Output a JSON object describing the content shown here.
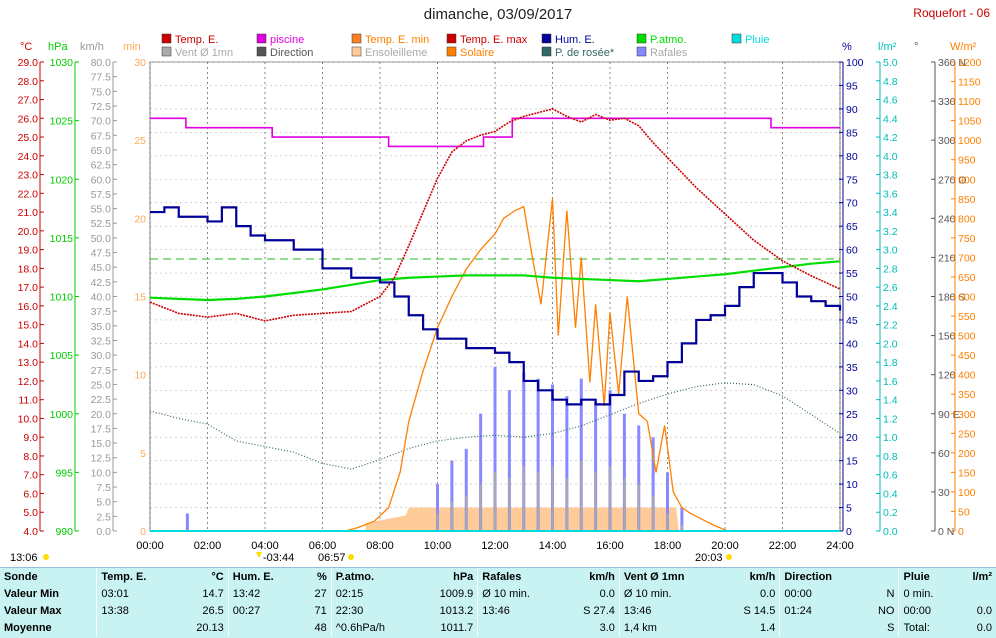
{
  "title": "dimanche, 03/09/2017",
  "station": "Roquefort - 06",
  "legend": [
    {
      "label": "Temp. E.",
      "color": "#cc0000"
    },
    {
      "label": "piscine",
      "color": "#e000e0"
    },
    {
      "label": "Temp. E. min",
      "color": "#ff7f27"
    },
    {
      "label": "Temp. E. max",
      "color": "#cc0000"
    },
    {
      "label": "Hum. E.",
      "color": "#000099"
    },
    {
      "label": "P.atmo.",
      "color": "#00dd00"
    },
    {
      "label": "Pluie",
      "color": "#00dddd"
    },
    {
      "label": "Vent Ø 1mn",
      "color": "#aaaaaa"
    },
    {
      "label": "Direction",
      "color": "#555555"
    },
    {
      "label": "Ensoleilleme",
      "color": "#ffcc99"
    },
    {
      "label": "Solaire",
      "color": "#ff7f00"
    },
    {
      "label": "P. de rosée*",
      "color": "#336666"
    },
    {
      "label": "Rafales",
      "color": "#8888ff"
    }
  ],
  "axis_units": {
    "temp": "°C",
    "press": "hPa",
    "wind": "km/h",
    "min": "min",
    "hum": "%",
    "rain": "l/m²",
    "dir": "°",
    "solar": "W/m²"
  },
  "sun": {
    "rise_label": "06:57",
    "set_label": "20:03",
    "day_start": "13:06",
    "night_label": "-03:44"
  },
  "chart_data": {
    "type": "line",
    "x_ticks": [
      "00:00",
      "02:00",
      "04:00",
      "06:00",
      "08:00",
      "10:00",
      "12:00",
      "14:00",
      "16:00",
      "18:00",
      "20:00",
      "22:00",
      "24:00"
    ],
    "axes": {
      "temp": {
        "ylim": [
          4,
          29
        ],
        "step": 1
      },
      "pressure": {
        "ylim": [
          990,
          1030
        ],
        "step": 5
      },
      "wind": {
        "ylim": [
          0,
          80
        ],
        "step": 2.5
      },
      "minutes": {
        "ylim": [
          0,
          30
        ],
        "step": 5
      },
      "humidity": {
        "ylim": [
          0,
          100
        ],
        "step": 5
      },
      "rain": {
        "ylim": [
          0,
          5
        ],
        "step": 0.2
      },
      "direction": {
        "ylim": [
          0,
          360
        ],
        "step": 30,
        "labels": {
          "360": "N",
          "270": "O",
          "180": "S",
          "90": "E",
          "0": "N"
        }
      },
      "solar": {
        "ylim": [
          0,
          1200
        ],
        "step": 50
      }
    },
    "series": [
      {
        "name": "Temp. E.",
        "axis": "temp",
        "color": "#cc0000",
        "x": [
          0,
          1,
          2,
          3,
          4,
          5,
          6,
          7,
          8,
          8.5,
          9,
          9.5,
          10,
          10.5,
          11,
          11.5,
          12,
          12.5,
          13,
          13.5,
          14,
          14.5,
          15,
          15.5,
          16,
          16.5,
          17,
          17.5,
          18,
          19,
          20,
          21,
          22,
          23,
          24
        ],
        "y": [
          16.2,
          15.6,
          15.4,
          15.6,
          15.2,
          15.5,
          15.6,
          15.7,
          16.5,
          17.5,
          19.2,
          21,
          22.8,
          24.2,
          24.8,
          25.1,
          25.3,
          25.8,
          26.1,
          26.3,
          26.5,
          26.1,
          25.8,
          26.2,
          25.9,
          26.0,
          25.6,
          24.7,
          23.9,
          22.3,
          20.9,
          19.5,
          18.4,
          17.6,
          16.9
        ]
      },
      {
        "name": "piscine",
        "axis": "temp",
        "color": "#e000e0",
        "x": [
          0,
          1.2,
          1.25,
          4.2,
          4.25,
          8.2,
          8.3,
          11.5,
          11.6,
          12.5,
          12.6,
          21.5,
          21.6,
          24
        ],
        "y": [
          26.0,
          26.0,
          25.5,
          25.5,
          25.0,
          25.0,
          24.5,
          24.5,
          25.0,
          25.0,
          26.0,
          26.0,
          25.5,
          25.5
        ]
      },
      {
        "name": "Hum. E.",
        "axis": "humidity",
        "color": "#000099",
        "x": [
          0,
          0.5,
          1,
          2,
          2.5,
          3,
          3.5,
          4,
          5,
          6,
          7,
          8,
          8.5,
          9,
          9.5,
          10,
          11,
          12,
          12.5,
          13,
          13.5,
          14,
          14.5,
          15,
          15.5,
          16,
          16.5,
          17,
          17.5,
          18,
          18.5,
          19,
          19.5,
          20,
          20.5,
          21,
          21.5,
          22,
          22.5,
          23,
          23.5,
          24
        ],
        "y": [
          68,
          69,
          67,
          66,
          69,
          65,
          63,
          62,
          60,
          56,
          54,
          53,
          50,
          46,
          43,
          41,
          39,
          38,
          36,
          32,
          30,
          28,
          27,
          28,
          27,
          29,
          34,
          32,
          33,
          36,
          40,
          45,
          46,
          48,
          52,
          55,
          55,
          53,
          50,
          49,
          48,
          47
        ]
      },
      {
        "name": "P.atmo.",
        "axis": "pressure",
        "color": "#00dd00",
        "x": [
          0,
          1,
          2,
          3,
          4,
          5,
          6,
          7,
          8,
          9,
          10,
          11,
          12,
          13,
          14,
          15,
          16,
          17,
          18,
          19,
          20,
          21,
          22,
          23,
          24
        ],
        "y": [
          1009.9,
          1009.8,
          1009.7,
          1009.8,
          1010.0,
          1010.3,
          1010.6,
          1011.0,
          1011.4,
          1011.6,
          1011.7,
          1011.8,
          1011.8,
          1011.8,
          1011.6,
          1011.5,
          1011.4,
          1011.3,
          1011.5,
          1011.7,
          1011.9,
          1012.2,
          1012.5,
          1012.8,
          1013.0
        ]
      },
      {
        "name": "Solaire",
        "axis": "solar",
        "color": "#ff7f00",
        "x": [
          6.8,
          7.2,
          7.8,
          8.3,
          8.7,
          9,
          9.5,
          10,
          10.5,
          11,
          11.5,
          12,
          12.3,
          12.7,
          13,
          13.3,
          13.6,
          14,
          14.2,
          14.5,
          14.8,
          15,
          15.3,
          15.5,
          15.8,
          16,
          16.3,
          16.6,
          17,
          17.3,
          17.6,
          17.9,
          18.2,
          18.5,
          18.8,
          19.2,
          19.6,
          20,
          20.1
        ],
        "y": [
          0,
          8,
          25,
          60,
          150,
          280,
          410,
          520,
          600,
          670,
          720,
          760,
          800,
          820,
          830,
          700,
          580,
          850,
          500,
          820,
          520,
          700,
          380,
          580,
          320,
          560,
          350,
          600,
          300,
          280,
          150,
          270,
          100,
          60,
          45,
          30,
          15,
          3,
          0
        ]
      },
      {
        "name": "P. de rosée*",
        "axis": "temp",
        "color": "#336666",
        "x": [
          0,
          1,
          2,
          3,
          4,
          5,
          6,
          7,
          8,
          9,
          10,
          11,
          12,
          13,
          14,
          15,
          16,
          17,
          18,
          19,
          20,
          21,
          22,
          23,
          24
        ],
        "y": [
          10.4,
          10.0,
          9.7,
          8.8,
          8.5,
          8.2,
          7.6,
          7.3,
          7.8,
          8.4,
          8.8,
          9.0,
          9.1,
          9.0,
          9.2,
          9.6,
          10.2,
          10.8,
          11.3,
          11.7,
          11.9,
          11.8,
          11.2,
          10.2,
          9.2
        ]
      },
      {
        "name": "Rafales",
        "axis": "wind",
        "color": "#8888ff",
        "x": [
          1.3,
          10,
          10.5,
          11,
          11.5,
          12,
          12.5,
          13,
          13.5,
          14,
          14.5,
          15,
          15.5,
          16,
          16.5,
          17,
          17.5,
          18,
          18.5
        ],
        "y": [
          3,
          8,
          12,
          14,
          20,
          28,
          24,
          27,
          26,
          25,
          23,
          26,
          22,
          24,
          20,
          18,
          16,
          10,
          4
        ]
      },
      {
        "name": "Vent Ø 1mn",
        "axis": "wind",
        "color": "#aaaaaa",
        "x": [
          10,
          10.5,
          11,
          11.5,
          12,
          12.5,
          13,
          13.5,
          14,
          14.5,
          15,
          15.5,
          16,
          16.5,
          17,
          17.5,
          18,
          18.5
        ],
        "y": [
          3,
          5,
          6,
          8,
          10,
          9,
          11,
          10,
          11,
          9,
          12,
          10,
          11,
          9,
          8,
          6,
          3,
          1
        ]
      },
      {
        "name": "Ensoleilleme",
        "axis": "minutes",
        "color": "#ffcc99",
        "x": [
          7.5,
          8.9,
          9,
          18.3,
          18.4
        ],
        "y": [
          0.5,
          1,
          1.5,
          1.5,
          0
        ]
      }
    ]
  },
  "stats": {
    "headers": [
      {
        "label": "Sonde",
        "unit": ""
      },
      {
        "label": "Temp. E.",
        "unit": "°C"
      },
      {
        "label": "Hum. E.",
        "unit": "%"
      },
      {
        "label": "P.atmo.",
        "unit": "hPa"
      },
      {
        "label": "Rafales",
        "unit": "km/h"
      },
      {
        "label": "Vent Ø 1mn",
        "unit": "km/h"
      },
      {
        "label": "Direction",
        "unit": ""
      },
      {
        "label": "Pluie",
        "unit": "l/m²"
      }
    ],
    "rows": [
      {
        "label": "Valeur Min",
        "cells": [
          [
            "03:01",
            "14.7"
          ],
          [
            "13:42",
            "27"
          ],
          [
            "02:15",
            "1009.9"
          ],
          [
            "Ø 10 min.",
            "0.0"
          ],
          [
            "Ø 10 min.",
            "0.0"
          ],
          [
            "00:00",
            "N"
          ],
          [
            "0 min.",
            ""
          ]
        ]
      },
      {
        "label": "Valeur Max",
        "cells": [
          [
            "13:38",
            "26.5"
          ],
          [
            "00:27",
            "71"
          ],
          [
            "22:30",
            "1013.2"
          ],
          [
            "13:46",
            "S 27.4"
          ],
          [
            "13:46",
            "S 14.5"
          ],
          [
            "01:24",
            "NO"
          ],
          [
            "00:00",
            "0.0"
          ]
        ]
      },
      {
        "label": "Moyenne",
        "cells": [
          [
            "",
            "20.13"
          ],
          [
            "",
            "48"
          ],
          [
            "^0.6hPa/h",
            "1011.7"
          ],
          [
            "",
            "3.0"
          ],
          [
            "1,4 km",
            "1.4"
          ],
          [
            "",
            "S"
          ],
          [
            "Total:",
            "0.0"
          ]
        ]
      }
    ]
  }
}
